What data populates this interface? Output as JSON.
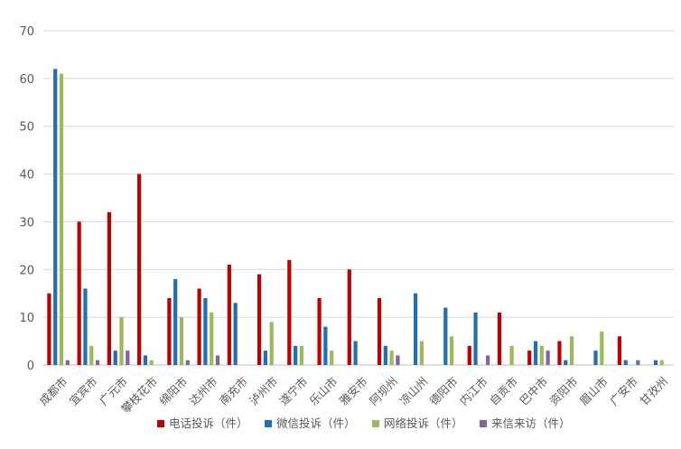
{
  "chart_data": {
    "type": "bar",
    "categories": [
      "成都市",
      "宜宾市",
      "广元市",
      "攀枝花市",
      "绵阳市",
      "达州市",
      "南充市",
      "泸州市",
      "遂宁市",
      "乐山市",
      "雅安市",
      "阿坝州",
      "凉山州",
      "德阳市",
      "内江市",
      "自贡市",
      "巴中市",
      "资阳市",
      "眉山市",
      "广安市",
      "甘孜州"
    ],
    "series": [
      {
        "name": "电话投诉（件）",
        "color": "#C00000",
        "values": [
          15,
          30,
          32,
          40,
          14,
          16,
          21,
          19,
          22,
          14,
          20,
          14,
          0,
          0,
          4,
          11,
          3,
          5,
          0,
          6,
          0
        ]
      },
      {
        "name": "微信投诉（件）",
        "color": "#1F6FB4",
        "values": [
          62,
          16,
          3,
          2,
          18,
          14,
          13,
          3,
          4,
          8,
          5,
          4,
          15,
          12,
          11,
          0,
          5,
          1,
          3,
          1,
          1
        ]
      },
      {
        "name": "网络投诉（件）",
        "color": "#9BBB59",
        "values": [
          61,
          4,
          10,
          1,
          10,
          11,
          0,
          9,
          4,
          3,
          0,
          3,
          5,
          6,
          0,
          4,
          4,
          6,
          7,
          0,
          1
        ]
      },
      {
        "name": "来信来访（件）",
        "color": "#8064A2",
        "values": [
          1,
          1,
          3,
          0,
          1,
          2,
          0,
          0,
          0,
          0,
          0,
          2,
          0,
          0,
          2,
          0,
          3,
          0,
          0,
          1,
          0
        ]
      }
    ],
    "ylim": [
      0,
      70
    ],
    "yticks": [
      "0",
      "10",
      "20",
      "30",
      "40",
      "50",
      "60",
      "70"
    ],
    "grid": true,
    "legend_position": "bottom"
  }
}
